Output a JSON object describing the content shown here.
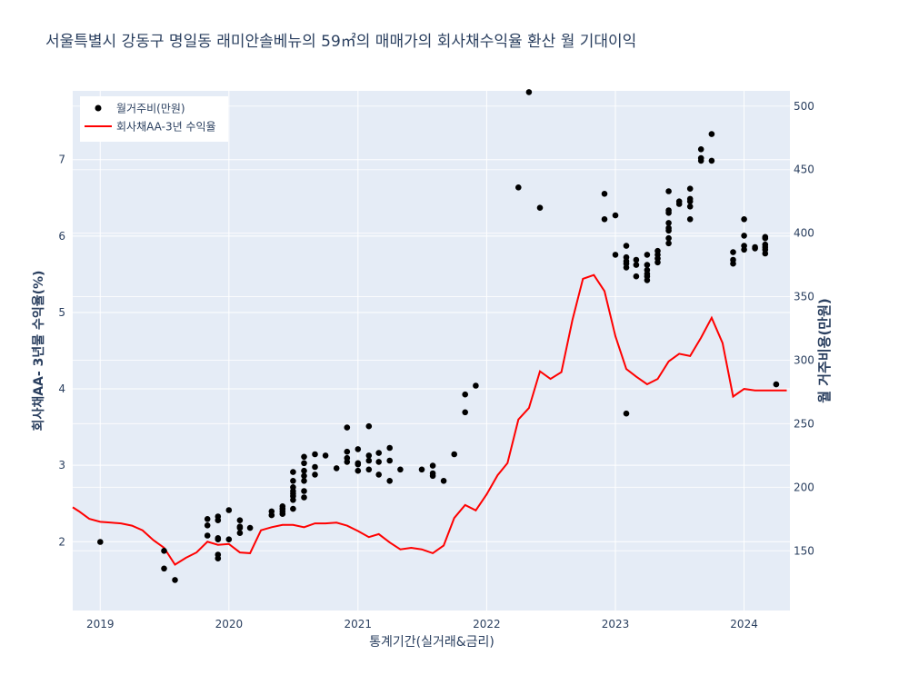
{
  "chart_data": {
    "type": "scatter",
    "title": "서울특별시 강동구 명일동 래미안솔베뉴의 59㎡의 매매가의 회사채수익율 환산 월 기대이익",
    "xlabel": "통계기간(실거래&금리)",
    "ylabel_left": "회사채AA- 3년물 수익율(%)",
    "ylabel_right": "월 거주비용(만원)",
    "x_tick_labels": [
      "2019",
      "2020",
      "2021",
      "2022",
      "2023",
      "2024"
    ],
    "x_range": [
      "2018-10-15",
      "2024-05-10"
    ],
    "y_left_range": [
      1.1,
      7.9
    ],
    "y_left_ticks": [
      2,
      3,
      4,
      5,
      6,
      7
    ],
    "y_right_range": [
      103,
      512
    ],
    "y_right_ticks": [
      150,
      200,
      250,
      300,
      350,
      400,
      450,
      500
    ],
    "grid": true,
    "legend_position": "top-left",
    "colors": {
      "plot_bg": "#e5ecf6",
      "line": "#ff0000",
      "marker": "#000000",
      "text": "#2a3f5f",
      "grid": "#ffffff"
    },
    "series": [
      {
        "name": "월거주비(만원)",
        "type": "scatter",
        "axis": "right",
        "points": [
          [
            "2019-01-01",
            157
          ],
          [
            "2019-07-01",
            150
          ],
          [
            "2019-07-01",
            136
          ],
          [
            "2019-08-01",
            127
          ],
          [
            "2019-11-01",
            170
          ],
          [
            "2019-11-01",
            162
          ],
          [
            "2019-11-01",
            175
          ],
          [
            "2019-12-01",
            177
          ],
          [
            "2019-12-01",
            174
          ],
          [
            "2019-12-01",
            160
          ],
          [
            "2019-12-01",
            147
          ],
          [
            "2019-12-01",
            144
          ],
          [
            "2019-12-01",
            159
          ],
          [
            "2020-01-01",
            159
          ],
          [
            "2020-01-01",
            182
          ],
          [
            "2020-02-01",
            174
          ],
          [
            "2020-02-01",
            169
          ],
          [
            "2020-02-01",
            168
          ],
          [
            "2020-02-01",
            164
          ],
          [
            "2020-03-01",
            168
          ],
          [
            "2020-05-01",
            181
          ],
          [
            "2020-05-01",
            178
          ],
          [
            "2020-06-01",
            183
          ],
          [
            "2020-06-01",
            185
          ],
          [
            "2020-06-01",
            181
          ],
          [
            "2020-06-01",
            179
          ],
          [
            "2020-07-01",
            212
          ],
          [
            "2020-07-01",
            205
          ],
          [
            "2020-07-01",
            200
          ],
          [
            "2020-07-01",
            197
          ],
          [
            "2020-07-01",
            195
          ],
          [
            "2020-07-01",
            193
          ],
          [
            "2020-07-01",
            190
          ],
          [
            "2020-07-01",
            183
          ],
          [
            "2020-08-01",
            224
          ],
          [
            "2020-08-01",
            219
          ],
          [
            "2020-08-01",
            213
          ],
          [
            "2020-08-01",
            209
          ],
          [
            "2020-08-01",
            205
          ],
          [
            "2020-08-01",
            197
          ],
          [
            "2020-08-01",
            192
          ],
          [
            "2020-09-01",
            226
          ],
          [
            "2020-09-01",
            216
          ],
          [
            "2020-09-01",
            210
          ],
          [
            "2020-10-01",
            225
          ],
          [
            "2020-11-01",
            215
          ],
          [
            "2020-12-01",
            247
          ],
          [
            "2020-12-01",
            228
          ],
          [
            "2020-12-01",
            223
          ],
          [
            "2020-12-01",
            220
          ],
          [
            "2021-01-01",
            230
          ],
          [
            "2021-01-01",
            219
          ],
          [
            "2021-01-01",
            218
          ],
          [
            "2021-01-01",
            213
          ],
          [
            "2021-02-01",
            248
          ],
          [
            "2021-02-01",
            225
          ],
          [
            "2021-02-01",
            221
          ],
          [
            "2021-02-01",
            214
          ],
          [
            "2021-03-01",
            227
          ],
          [
            "2021-03-01",
            220
          ],
          [
            "2021-03-01",
            210
          ],
          [
            "2021-04-01",
            231
          ],
          [
            "2021-04-01",
            221
          ],
          [
            "2021-04-01",
            205
          ],
          [
            "2021-05-01",
            214
          ],
          [
            "2021-07-01",
            214
          ],
          [
            "2021-08-01",
            217
          ],
          [
            "2021-08-01",
            211
          ],
          [
            "2021-08-01",
            209
          ],
          [
            "2021-09-01",
            205
          ],
          [
            "2021-10-01",
            226
          ],
          [
            "2021-11-01",
            273
          ],
          [
            "2021-11-01",
            259
          ],
          [
            "2021-12-01",
            280
          ],
          [
            "2022-04-01",
            436
          ],
          [
            "2022-05-01",
            511
          ],
          [
            "2022-06-01",
            420
          ],
          [
            "2022-12-01",
            431
          ],
          [
            "2022-12-01",
            411
          ],
          [
            "2023-01-01",
            414
          ],
          [
            "2023-01-01",
            383
          ],
          [
            "2023-02-01",
            390
          ],
          [
            "2023-02-01",
            381
          ],
          [
            "2023-02-01",
            378
          ],
          [
            "2023-02-01",
            376
          ],
          [
            "2023-02-01",
            373
          ],
          [
            "2023-02-01",
            258
          ],
          [
            "2023-03-01",
            379
          ],
          [
            "2023-03-01",
            375
          ],
          [
            "2023-03-01",
            366
          ],
          [
            "2023-04-01",
            383
          ],
          [
            "2023-04-01",
            375
          ],
          [
            "2023-04-01",
            371
          ],
          [
            "2023-04-01",
            368
          ],
          [
            "2023-04-01",
            366
          ],
          [
            "2023-04-01",
            363
          ],
          [
            "2023-05-01",
            386
          ],
          [
            "2023-05-01",
            383
          ],
          [
            "2023-05-01",
            380
          ],
          [
            "2023-05-01",
            377
          ],
          [
            "2023-06-01",
            433
          ],
          [
            "2023-06-01",
            418
          ],
          [
            "2023-06-01",
            416
          ],
          [
            "2023-06-01",
            408
          ],
          [
            "2023-06-01",
            404
          ],
          [
            "2023-06-01",
            402
          ],
          [
            "2023-06-01",
            396
          ],
          [
            "2023-06-01",
            392
          ],
          [
            "2023-07-01",
            425
          ],
          [
            "2023-07-01",
            423
          ],
          [
            "2023-08-01",
            435
          ],
          [
            "2023-08-01",
            427
          ],
          [
            "2023-08-01",
            425
          ],
          [
            "2023-08-01",
            421
          ],
          [
            "2023-08-01",
            411
          ],
          [
            "2023-09-01",
            466
          ],
          [
            "2023-09-01",
            459
          ],
          [
            "2023-09-01",
            457
          ],
          [
            "2023-10-01",
            478
          ],
          [
            "2023-10-01",
            457
          ],
          [
            "2023-12-01",
            385
          ],
          [
            "2023-12-01",
            379
          ],
          [
            "2023-12-01",
            376
          ],
          [
            "2024-01-01",
            411
          ],
          [
            "2024-01-01",
            398
          ],
          [
            "2024-01-01",
            390
          ],
          [
            "2024-01-01",
            387
          ],
          [
            "2024-02-01",
            389
          ],
          [
            "2024-02-01",
            388
          ],
          [
            "2024-03-01",
            397
          ],
          [
            "2024-03-01",
            396
          ],
          [
            "2024-03-01",
            391
          ],
          [
            "2024-03-01",
            389
          ],
          [
            "2024-03-01",
            387
          ],
          [
            "2024-03-01",
            384
          ],
          [
            "2024-04-01",
            281
          ]
        ]
      },
      {
        "name": "회사채AA-3년 수익율",
        "type": "line",
        "axis": "left",
        "points": [
          [
            "2018-10-15",
            2.45
          ],
          [
            "2018-11-01",
            2.4
          ],
          [
            "2018-12-01",
            2.3
          ],
          [
            "2019-01-01",
            2.26
          ],
          [
            "2019-02-01",
            2.25
          ],
          [
            "2019-03-01",
            2.24
          ],
          [
            "2019-04-01",
            2.21
          ],
          [
            "2019-05-01",
            2.15
          ],
          [
            "2019-06-01",
            2.02
          ],
          [
            "2019-07-01",
            1.92
          ],
          [
            "2019-08-01",
            1.7
          ],
          [
            "2019-09-01",
            1.79
          ],
          [
            "2019-10-01",
            1.86
          ],
          [
            "2019-11-01",
            2.0
          ],
          [
            "2019-12-01",
            1.96
          ],
          [
            "2020-01-01",
            1.97
          ],
          [
            "2020-02-01",
            1.86
          ],
          [
            "2020-03-01",
            1.85
          ],
          [
            "2020-04-01",
            2.15
          ],
          [
            "2020-05-01",
            2.19
          ],
          [
            "2020-06-01",
            2.22
          ],
          [
            "2020-07-01",
            2.22
          ],
          [
            "2020-08-01",
            2.19
          ],
          [
            "2020-09-01",
            2.24
          ],
          [
            "2020-10-01",
            2.24
          ],
          [
            "2020-11-01",
            2.25
          ],
          [
            "2020-12-01",
            2.21
          ],
          [
            "2021-01-01",
            2.14
          ],
          [
            "2021-02-01",
            2.06
          ],
          [
            "2021-03-01",
            2.1
          ],
          [
            "2021-04-01",
            1.99
          ],
          [
            "2021-05-01",
            1.9
          ],
          [
            "2021-06-01",
            1.92
          ],
          [
            "2021-07-01",
            1.9
          ],
          [
            "2021-08-01",
            1.85
          ],
          [
            "2021-09-01",
            1.95
          ],
          [
            "2021-10-01",
            2.31
          ],
          [
            "2021-11-01",
            2.48
          ],
          [
            "2021-12-01",
            2.41
          ],
          [
            "2022-01-01",
            2.62
          ],
          [
            "2022-02-01",
            2.87
          ],
          [
            "2022-03-01",
            3.03
          ],
          [
            "2022-04-01",
            3.6
          ],
          [
            "2022-05-01",
            3.75
          ],
          [
            "2022-06-01",
            4.23
          ],
          [
            "2022-07-01",
            4.13
          ],
          [
            "2022-08-01",
            4.22
          ],
          [
            "2022-09-01",
            4.9
          ],
          [
            "2022-10-01",
            5.44
          ],
          [
            "2022-11-01",
            5.49
          ],
          [
            "2022-12-01",
            5.28
          ],
          [
            "2023-01-01",
            4.69
          ],
          [
            "2023-02-01",
            4.26
          ],
          [
            "2023-03-01",
            4.16
          ],
          [
            "2023-04-01",
            4.06
          ],
          [
            "2023-05-01",
            4.13
          ],
          [
            "2023-06-01",
            4.36
          ],
          [
            "2023-07-01",
            4.46
          ],
          [
            "2023-08-01",
            4.43
          ],
          [
            "2023-09-01",
            4.67
          ],
          [
            "2023-10-01",
            4.93
          ],
          [
            "2023-11-01",
            4.6
          ],
          [
            "2023-12-01",
            3.9
          ],
          [
            "2024-01-01",
            4.0
          ],
          [
            "2024-02-01",
            3.98
          ],
          [
            "2024-03-01",
            3.98
          ],
          [
            "2024-04-01",
            3.98
          ],
          [
            "2024-05-01",
            3.98
          ]
        ]
      }
    ]
  }
}
